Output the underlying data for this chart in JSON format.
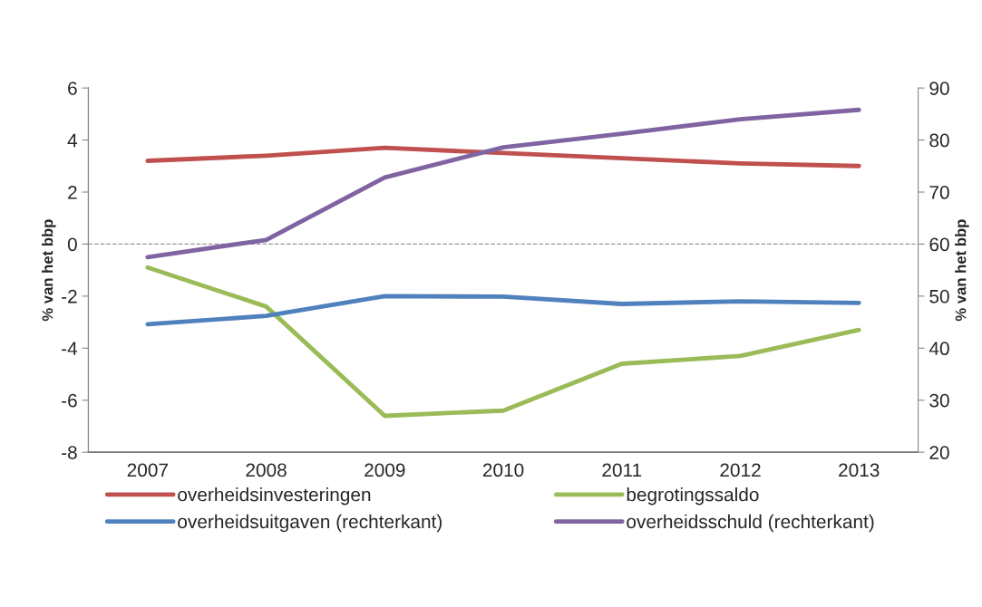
{
  "chart_data": {
    "type": "line",
    "ylabel": "% van het bbp",
    "y2label": "% van het bbp",
    "categories": [
      "2007",
      "2008",
      "2009",
      "2010",
      "2011",
      "2012",
      "2013"
    ],
    "series": [
      {
        "name": "overheidsinvesteringen",
        "color": "#c0504d",
        "values": [
          3.2,
          3.4,
          3.7,
          3.5,
          3.3,
          3.1,
          3.0
        ]
      },
      {
        "name": "begrotingssaldo",
        "color": "#9bbb59",
        "values": [
          -0.9,
          -2.4,
          -6.6,
          -6.4,
          -4.6,
          -4.3,
          -3.3
        ]
      },
      {
        "name": "overheidsuitgaven (rechterkant)",
        "color": "#4f81bd",
        "axis": "y2",
        "values": [
          44.6,
          46.2,
          50.0,
          49.9,
          48.5,
          49.0,
          48.7
        ]
      },
      {
        "name": "overheidsschuld (rechterkant)",
        "color": "#8064a2",
        "axis": "y2",
        "values": [
          57.5,
          60.8,
          72.8,
          78.6,
          81.2,
          84.0,
          85.8
        ]
      }
    ],
    "ylim": [
      -8,
      6
    ],
    "yticks": [
      -8,
      -6,
      -4,
      -2,
      0,
      2,
      4,
      6
    ],
    "y2lim": [
      20,
      90
    ],
    "y2ticks": [
      20,
      30,
      40,
      50,
      60,
      70,
      80,
      90
    ],
    "ref_lines": [
      {
        "axis": "y",
        "value": 0,
        "color": "#999999",
        "line_style": "dashed"
      }
    ],
    "grid": false,
    "legend": "bottom",
    "marker": "none",
    "line_style": "solid"
  }
}
